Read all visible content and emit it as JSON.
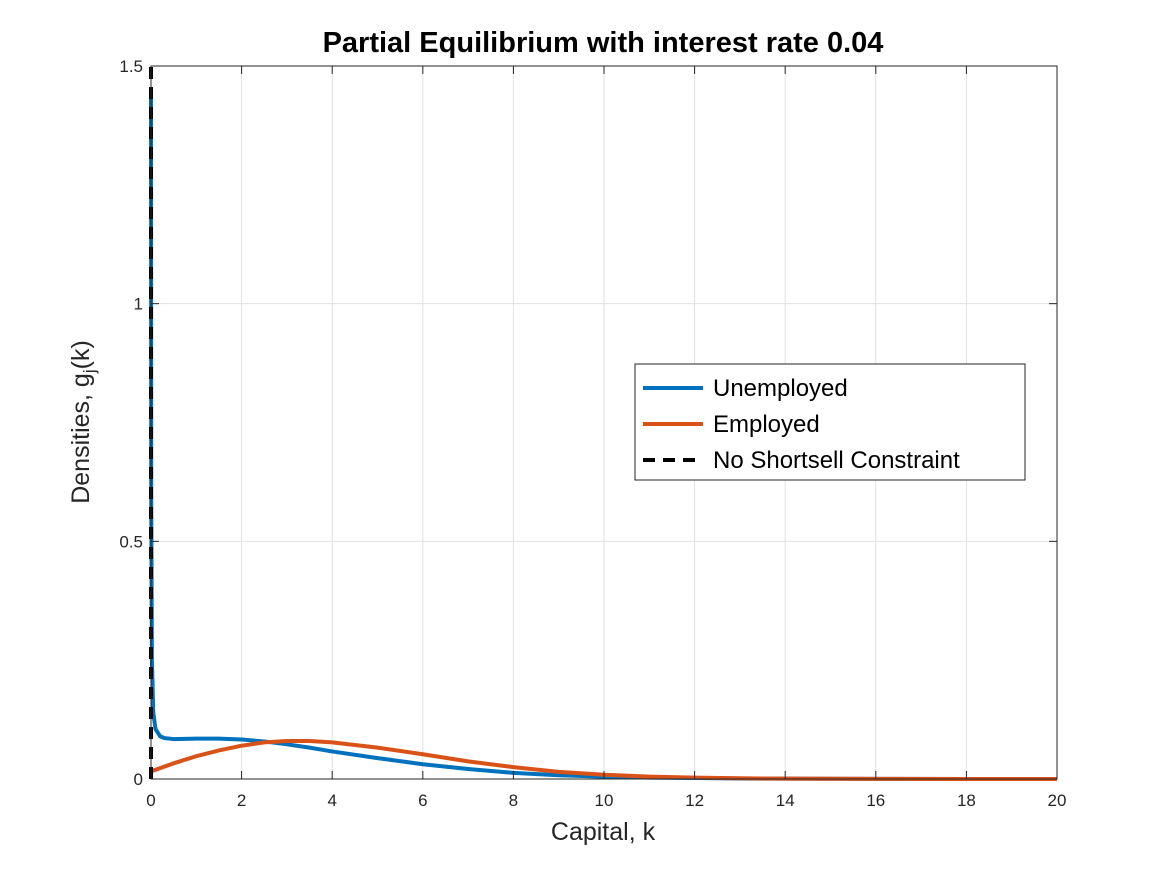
{
  "chart_data": {
    "type": "line",
    "title": "Partial Equilibrium with interest rate 0.04",
    "xlabel": "Capital, k",
    "ylabel": "Densities, g",
    "ylabel_sub": "j",
    "ylabel_tail": "(k)",
    "xlim": [
      0,
      20
    ],
    "ylim": [
      0,
      1.5
    ],
    "xticks": [
      0,
      2,
      4,
      6,
      8,
      10,
      12,
      14,
      16,
      18,
      20
    ],
    "yticks": [
      0,
      0.5,
      1,
      1.5
    ],
    "xtick_labels": [
      "0",
      "2",
      "4",
      "6",
      "8",
      "10",
      "12",
      "14",
      "16",
      "18",
      "20"
    ],
    "ytick_labels": [
      "0",
      "0.5",
      "1",
      "1.5"
    ],
    "grid": true,
    "legend_position": "right",
    "series": [
      {
        "name": "Unemployed",
        "color": "#0072BD",
        "style": "solid",
        "x": [
          0,
          0.005,
          0.02,
          0.05,
          0.1,
          0.2,
          0.3,
          0.5,
          1,
          1.5,
          2,
          2.5,
          3,
          3.5,
          4,
          5,
          6,
          7,
          8,
          9,
          10,
          11,
          12,
          13,
          14,
          16,
          18,
          20
        ],
        "y": [
          1.45,
          0.6,
          0.25,
          0.14,
          0.105,
          0.09,
          0.086,
          0.084,
          0.085,
          0.085,
          0.083,
          0.079,
          0.073,
          0.066,
          0.058,
          0.044,
          0.031,
          0.021,
          0.013,
          0.008,
          0.005,
          0.003,
          0.002,
          0.001,
          0.0007,
          0.0003,
          0.0001,
          0.0
        ]
      },
      {
        "name": "Employed",
        "color": "#D95319",
        "style": "solid",
        "x": [
          0,
          0.5,
          1,
          1.5,
          2,
          2.5,
          3,
          3.5,
          4,
          5,
          6,
          7,
          8,
          9,
          10,
          11,
          12,
          13,
          14,
          16,
          18,
          20
        ],
        "y": [
          0.016,
          0.033,
          0.048,
          0.06,
          0.07,
          0.077,
          0.08,
          0.08,
          0.077,
          0.066,
          0.052,
          0.037,
          0.025,
          0.015,
          0.009,
          0.005,
          0.003,
          0.0015,
          0.0008,
          0.0002,
          0.0001,
          0.0
        ]
      },
      {
        "name": "No Shortsell Constraint",
        "color": "#000000",
        "style": "dashed",
        "x": [
          0,
          0
        ],
        "y": [
          0,
          1.5
        ]
      }
    ]
  }
}
